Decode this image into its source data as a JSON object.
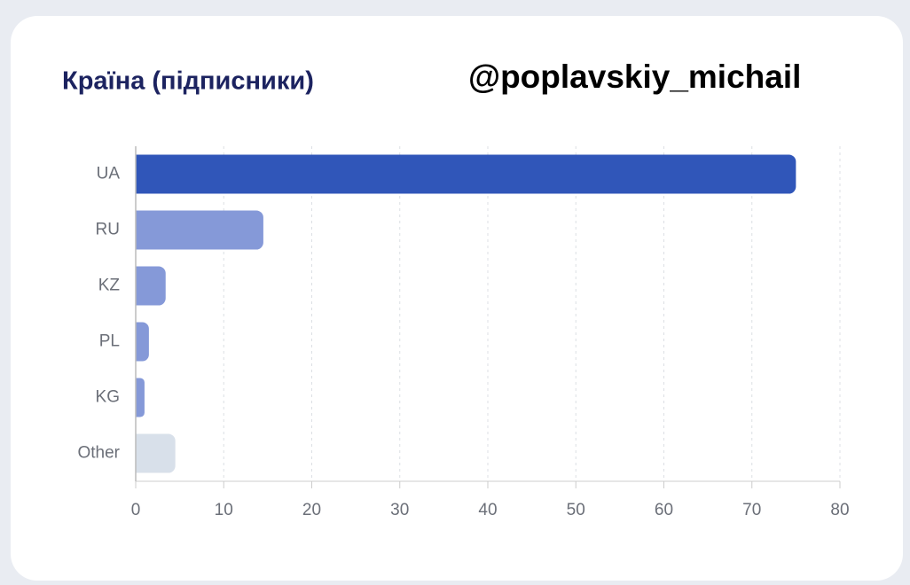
{
  "chart_data": {
    "type": "bar",
    "orientation": "horizontal",
    "title": "Країна (підписники)",
    "watermark": "@poplavskiy_michail",
    "categories": [
      "UA",
      "RU",
      "KZ",
      "PL",
      "KG",
      "Other"
    ],
    "values": [
      75,
      14.5,
      3.4,
      1.5,
      1,
      4.5
    ],
    "colors": [
      "#3056b9",
      "#8599d8",
      "#8599d8",
      "#8599d8",
      "#8599d8",
      "#d8e0ea"
    ],
    "xlim": [
      0,
      80
    ],
    "xticks": [
      0,
      10,
      20,
      30,
      40,
      50,
      60,
      70,
      80
    ],
    "grid": true
  }
}
